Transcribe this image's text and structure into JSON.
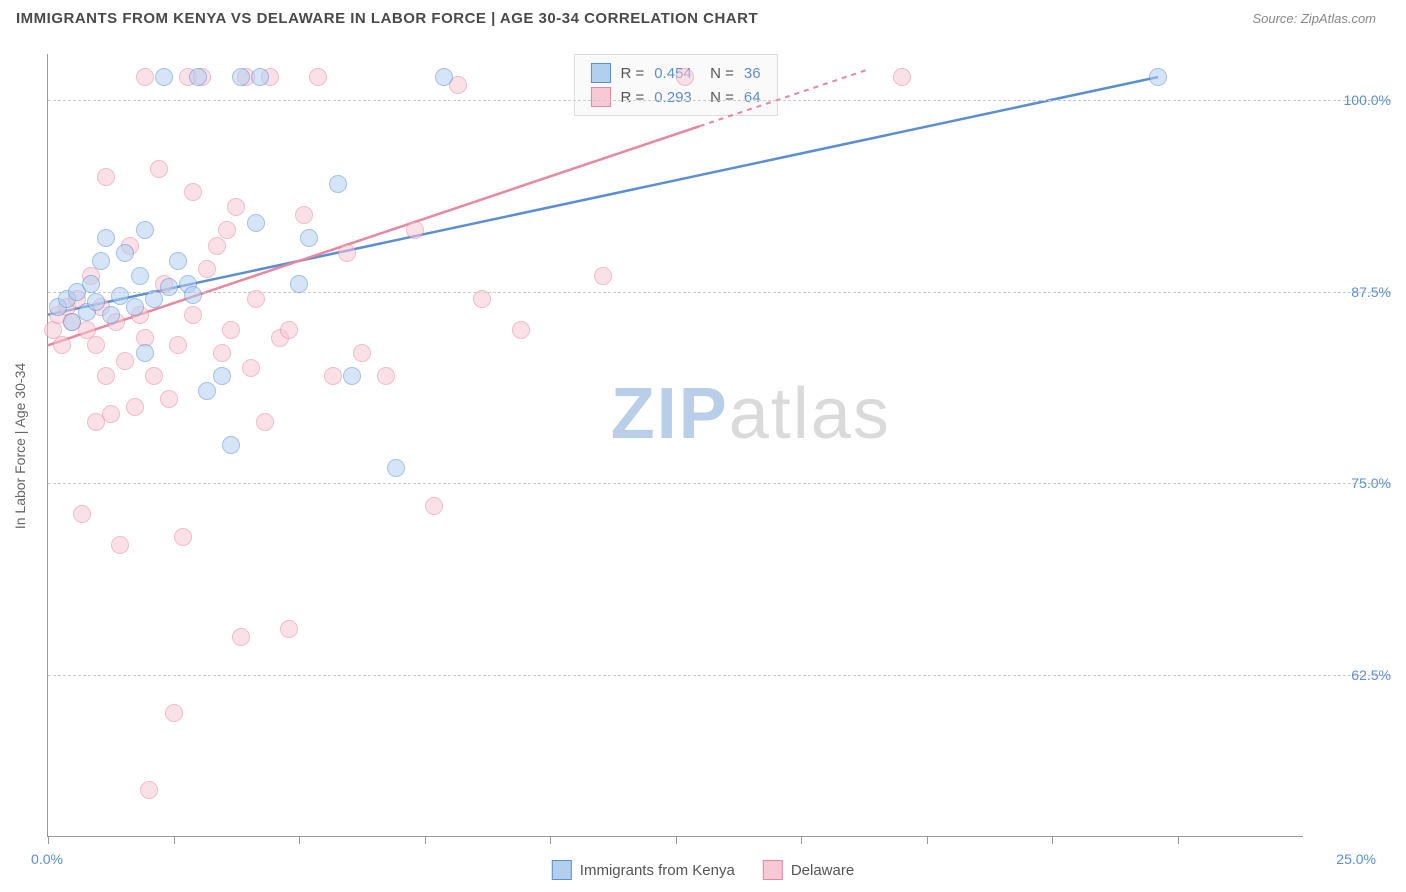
{
  "header": {
    "title": "IMMIGRANTS FROM KENYA VS DELAWARE IN LABOR FORCE | AGE 30-34 CORRELATION CHART",
    "source": "Source: ZipAtlas.com"
  },
  "watermark": {
    "zip": "ZIP",
    "rest": "atlas"
  },
  "chart": {
    "type": "scatter",
    "background_color": "#ffffff",
    "grid_color": "#cccccc",
    "axis_color": "#999999",
    "ylabel": "In Labor Force | Age 30-34",
    "label_fontsize": 14,
    "label_color": "#666666",
    "tick_color": "#5a8fd6",
    "xlim": [
      0,
      26
    ],
    "ylim": [
      52,
      103
    ],
    "yticks": [
      62.5,
      75.0,
      87.5,
      100.0
    ],
    "ytick_labels": [
      "62.5%",
      "75.0%",
      "87.5%",
      "100.0%"
    ],
    "xticks": [
      0,
      2.6,
      5.2,
      7.8,
      10.4,
      13.0,
      15.6,
      18.2,
      20.8,
      23.4
    ],
    "xtick_labels": {
      "start": "0.0%",
      "end": "25.0%"
    },
    "point_radius": 9,
    "point_opacity": 0.55,
    "series": [
      {
        "name": "Immigrants from Kenya",
        "color_fill": "#b3cff0",
        "color_stroke": "#5a8fd6",
        "R": "0.454",
        "N": "36",
        "trend": {
          "x1": 0.0,
          "y1": 86.0,
          "x2": 23.0,
          "y2": 101.5,
          "dash_from_x": null
        },
        "points": [
          [
            0.2,
            86.5
          ],
          [
            0.4,
            87.0
          ],
          [
            0.5,
            85.5
          ],
          [
            0.6,
            87.5
          ],
          [
            0.8,
            86.2
          ],
          [
            0.9,
            88.0
          ],
          [
            1.0,
            86.8
          ],
          [
            1.1,
            89.5
          ],
          [
            1.2,
            91.0
          ],
          [
            1.3,
            86.0
          ],
          [
            1.5,
            87.2
          ],
          [
            1.6,
            90.0
          ],
          [
            1.8,
            86.5
          ],
          [
            1.9,
            88.5
          ],
          [
            2.0,
            83.5
          ],
          [
            2.0,
            91.5
          ],
          [
            2.2,
            87.0
          ],
          [
            2.4,
            101.5
          ],
          [
            2.5,
            87.8
          ],
          [
            2.7,
            89.5
          ],
          [
            2.9,
            88.0
          ],
          [
            3.0,
            87.3
          ],
          [
            3.1,
            101.5
          ],
          [
            3.3,
            81.0
          ],
          [
            3.6,
            82.0
          ],
          [
            3.8,
            77.5
          ],
          [
            4.0,
            101.5
          ],
          [
            4.3,
            92.0
          ],
          [
            4.4,
            101.5
          ],
          [
            5.2,
            88.0
          ],
          [
            5.4,
            91.0
          ],
          [
            6.0,
            94.5
          ],
          [
            6.3,
            82.0
          ],
          [
            7.2,
            76.0
          ],
          [
            8.2,
            101.5
          ],
          [
            23.0,
            101.5
          ]
        ]
      },
      {
        "name": "Delaware",
        "color_fill": "#f7c9d4",
        "color_stroke": "#e986a0",
        "R": "0.293",
        "N": "64",
        "trend": {
          "x1": 0.0,
          "y1": 84.0,
          "x2": 17.0,
          "y2": 102.0,
          "dash_from_x": 13.5
        },
        "points": [
          [
            0.1,
            85.0
          ],
          [
            0.2,
            86.0
          ],
          [
            0.3,
            84.0
          ],
          [
            0.4,
            86.5
          ],
          [
            0.5,
            85.5
          ],
          [
            0.6,
            87.0
          ],
          [
            0.7,
            73.0
          ],
          [
            0.8,
            85.0
          ],
          [
            0.9,
            88.5
          ],
          [
            1.0,
            79.0
          ],
          [
            1.0,
            84.0
          ],
          [
            1.1,
            86.5
          ],
          [
            1.2,
            95.0
          ],
          [
            1.2,
            82.0
          ],
          [
            1.3,
            79.5
          ],
          [
            1.4,
            85.5
          ],
          [
            1.5,
            71.0
          ],
          [
            1.6,
            83.0
          ],
          [
            1.7,
            90.5
          ],
          [
            1.8,
            80.0
          ],
          [
            1.9,
            86.0
          ],
          [
            2.0,
            84.5
          ],
          [
            2.0,
            101.5
          ],
          [
            2.1,
            55.0
          ],
          [
            2.2,
            82.0
          ],
          [
            2.3,
            95.5
          ],
          [
            2.4,
            88.0
          ],
          [
            2.5,
            80.5
          ],
          [
            2.6,
            60.0
          ],
          [
            2.7,
            84.0
          ],
          [
            2.8,
            71.5
          ],
          [
            2.9,
            101.5
          ],
          [
            3.0,
            86.0
          ],
          [
            3.0,
            94.0
          ],
          [
            3.2,
            101.5
          ],
          [
            3.3,
            89.0
          ],
          [
            3.5,
            90.5
          ],
          [
            3.6,
            83.5
          ],
          [
            3.7,
            91.5
          ],
          [
            3.8,
            85.0
          ],
          [
            3.9,
            93.0
          ],
          [
            4.0,
            65.0
          ],
          [
            4.1,
            101.5
          ],
          [
            4.2,
            82.5
          ],
          [
            4.3,
            87.0
          ],
          [
            4.5,
            79.0
          ],
          [
            4.6,
            101.5
          ],
          [
            4.8,
            84.5
          ],
          [
            5.0,
            85.0
          ],
          [
            5.0,
            65.5
          ],
          [
            5.3,
            92.5
          ],
          [
            5.6,
            101.5
          ],
          [
            5.9,
            82.0
          ],
          [
            6.2,
            90.0
          ],
          [
            6.5,
            83.5
          ],
          [
            7.0,
            82.0
          ],
          [
            7.6,
            91.5
          ],
          [
            8.0,
            73.5
          ],
          [
            8.5,
            101.0
          ],
          [
            9.0,
            87.0
          ],
          [
            9.8,
            85.0
          ],
          [
            11.5,
            88.5
          ],
          [
            13.2,
            101.5
          ],
          [
            17.7,
            101.5
          ]
        ]
      }
    ]
  },
  "legend_bottom": [
    {
      "label": "Immigrants from Kenya",
      "fill": "#b3cff0",
      "stroke": "#5a8fd6"
    },
    {
      "label": "Delaware",
      "fill": "#f7c9d4",
      "stroke": "#e986a0"
    }
  ]
}
